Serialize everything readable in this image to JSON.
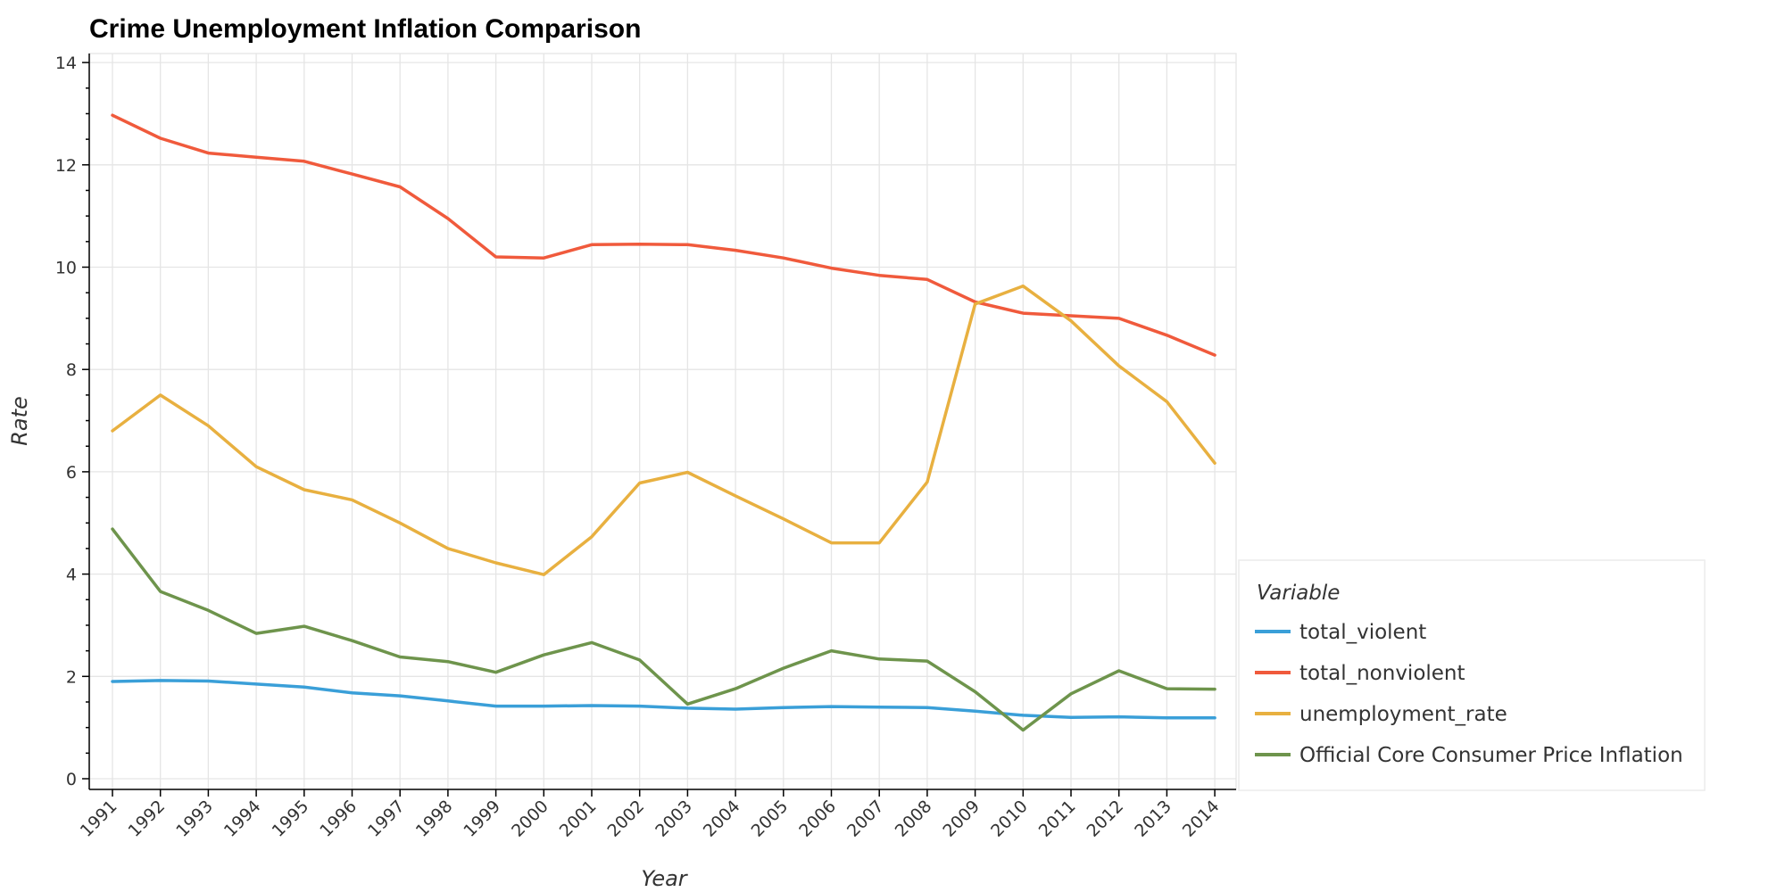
{
  "chart_data": {
    "type": "line",
    "title": "Crime Unemployment Inflation Comparison",
    "xlabel": "Year",
    "ylabel": "Rate",
    "ylim": [
      0,
      14
    ],
    "yticks": [
      0,
      2,
      4,
      6,
      8,
      10,
      12,
      14
    ],
    "grid": true,
    "legend": {
      "title": "Variable",
      "placement": "bottom-right, outside"
    },
    "x": [
      "1991",
      "1992",
      "1993",
      "1994",
      "1995",
      "1996",
      "1997",
      "1998",
      "1999",
      "2000",
      "2001",
      "2002",
      "2003",
      "2004",
      "2005",
      "2006",
      "2007",
      "2008",
      "2009",
      "2010",
      "2011",
      "2012",
      "2013",
      "2014"
    ],
    "series": [
      {
        "name": "total_violent",
        "color": "#3a9fd8",
        "values": [
          1.9,
          1.92,
          1.91,
          1.85,
          1.79,
          1.68,
          1.62,
          1.52,
          1.42,
          1.42,
          1.43,
          1.42,
          1.38,
          1.36,
          1.39,
          1.41,
          1.4,
          1.39,
          1.32,
          1.24,
          1.2,
          1.21,
          1.19,
          1.19
        ]
      },
      {
        "name": "total_nonviolent",
        "color": "#f05a3c",
        "values": [
          12.97,
          12.52,
          12.23,
          12.15,
          12.07,
          11.82,
          11.57,
          10.95,
          10.2,
          10.18,
          10.44,
          10.45,
          10.44,
          10.33,
          10.18,
          9.98,
          9.84,
          9.76,
          9.32,
          9.1,
          9.05,
          9.0,
          8.67,
          8.28
        ]
      },
      {
        "name": "unemployment_rate",
        "color": "#e8b040",
        "values": [
          6.8,
          7.5,
          6.9,
          6.1,
          5.65,
          5.45,
          5.0,
          4.5,
          4.22,
          3.99,
          4.73,
          5.78,
          5.99,
          5.53,
          5.08,
          4.61,
          4.61,
          5.8,
          9.28,
          9.63,
          8.95,
          8.07,
          7.37,
          6.17
        ]
      },
      {
        "name": "Official Core Consumer Price Inflation",
        "color": "#6e944c",
        "values": [
          4.88,
          3.66,
          3.29,
          2.84,
          2.98,
          2.7,
          2.38,
          2.29,
          2.08,
          2.42,
          2.66,
          2.32,
          1.46,
          1.76,
          2.16,
          2.5,
          2.34,
          2.3,
          1.7,
          0.95,
          1.66,
          2.11,
          1.76,
          1.75
        ]
      }
    ]
  }
}
